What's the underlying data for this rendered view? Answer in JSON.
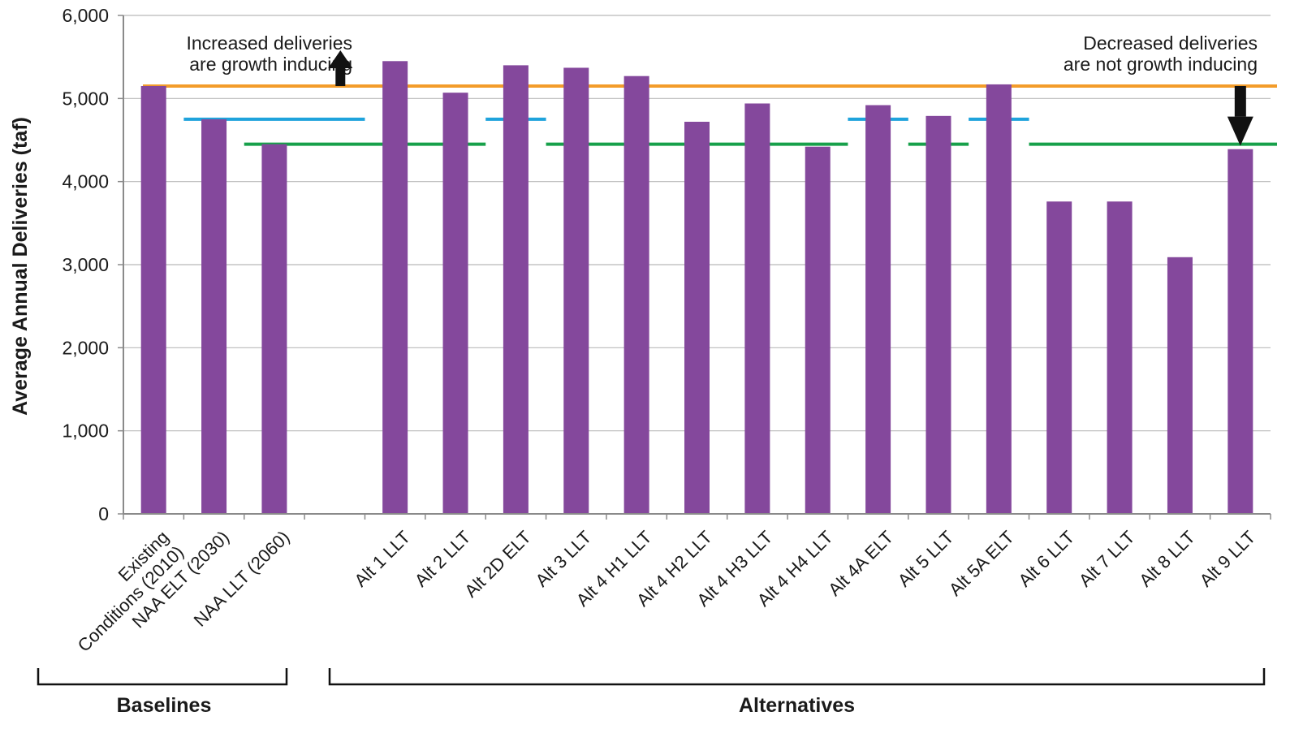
{
  "chart_data": {
    "type": "bar",
    "ylabel": "Average Annual Deliveries (taf)",
    "ylim": [
      0,
      6000
    ],
    "yticks": [
      0,
      1000,
      2000,
      3000,
      4000,
      5000,
      6000
    ],
    "ytick_labels": [
      "0",
      "1,000",
      "2,000",
      "3,000",
      "4,000",
      "5,000",
      "6,000"
    ],
    "grid": "horizontal",
    "bar_color": "#84489c",
    "categories": [
      {
        "label": "Existing Conditions (2010)",
        "lines": [
          "Existing",
          "Conditions (2010)"
        ],
        "value": 5150
      },
      {
        "label": "NAA ELT (2030)",
        "lines": [
          "NAA ELT (2030)"
        ],
        "value": 4750
      },
      {
        "label": "NAA LLT (2060)",
        "lines": [
          "NAA LLT (2060)"
        ],
        "value": 4450
      },
      {
        "label": "",
        "lines": [],
        "value": null
      },
      {
        "label": "Alt 1 LLT",
        "lines": [
          "Alt 1 LLT"
        ],
        "value": 5450
      },
      {
        "label": "Alt 2 LLT",
        "lines": [
          "Alt 2 LLT"
        ],
        "value": 5070
      },
      {
        "label": "Alt 2D ELT",
        "lines": [
          "Alt 2D ELT"
        ],
        "value": 5400
      },
      {
        "label": "Alt 3 LLT",
        "lines": [
          "Alt 3 LLT"
        ],
        "value": 5370
      },
      {
        "label": "Alt 4 H1 LLT",
        "lines": [
          "Alt 4 H1 LLT"
        ],
        "value": 5270
      },
      {
        "label": "Alt 4 H2 LLT",
        "lines": [
          "Alt 4 H2 LLT"
        ],
        "value": 4720
      },
      {
        "label": "Alt 4 H3 LLT",
        "lines": [
          "Alt 4 H3 LLT"
        ],
        "value": 4940
      },
      {
        "label": "Alt 4 H4 LLT",
        "lines": [
          "Alt 4 H4 LLT"
        ],
        "value": 4420
      },
      {
        "label": "Alt 4A ELT",
        "lines": [
          "Alt 4A ELT"
        ],
        "value": 4920
      },
      {
        "label": "Alt 5 LLT",
        "lines": [
          "Alt 5 LLT"
        ],
        "value": 4790
      },
      {
        "label": "Alt 5A ELT",
        "lines": [
          "Alt 5A ELT"
        ],
        "value": 5170
      },
      {
        "label": "Alt 6 LLT",
        "lines": [
          "Alt 6 LLT"
        ],
        "value": 3760
      },
      {
        "label": "Alt 7 LLT",
        "lines": [
          "Alt 7 LLT"
        ],
        "value": 3760
      },
      {
        "label": "Alt 8 LLT",
        "lines": [
          "Alt 8 LLT"
        ],
        "value": 3090
      },
      {
        "label": "Alt 9 LLT",
        "lines": [
          "Alt 9 LLT"
        ],
        "value": 4390
      }
    ],
    "reference_lines": [
      {
        "value": 5150,
        "color": "#f39c2a",
        "segments": [
          [
            0,
            19
          ]
        ]
      },
      {
        "value": 4750,
        "color": "#1fa3dc",
        "segments": [
          [
            1,
            4
          ],
          [
            6,
            7
          ],
          [
            12,
            13
          ],
          [
            14,
            15
          ]
        ]
      },
      {
        "value": 4450,
        "color": "#17a04a",
        "segments": [
          [
            2,
            6
          ],
          [
            7,
            12
          ],
          [
            13,
            14
          ],
          [
            15,
            19
          ]
        ]
      }
    ],
    "annotations": [
      {
        "lines": [
          "Increased deliveries",
          "are growth inducing"
        ],
        "side": "left",
        "arrow": "up"
      },
      {
        "lines": [
          "Decreased deliveries",
          "are not growth inducing"
        ],
        "side": "right",
        "arrow": "down"
      }
    ],
    "groups": [
      {
        "label": "Baselines",
        "from": 0,
        "to": 3
      },
      {
        "label": "Alternatives",
        "from": 4,
        "to": 19
      }
    ]
  }
}
